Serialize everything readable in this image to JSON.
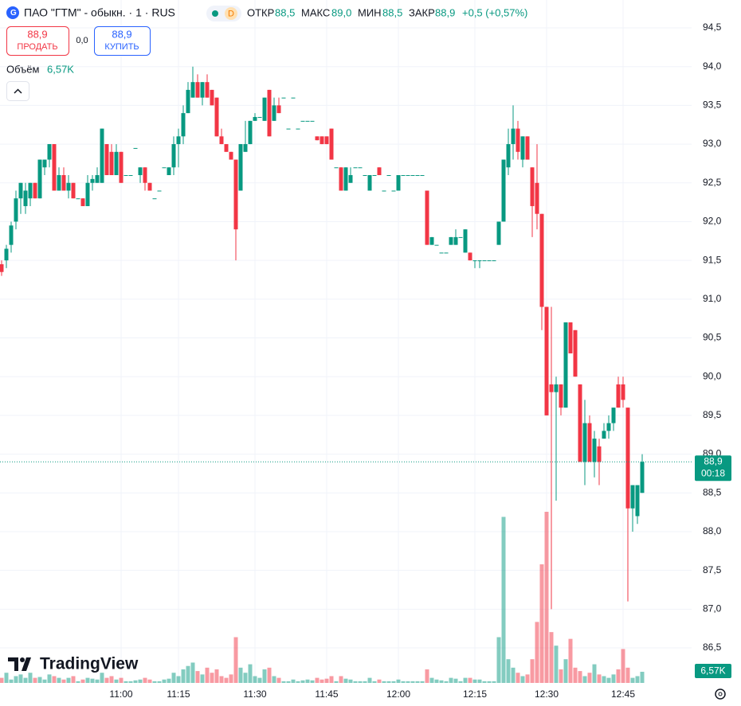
{
  "header": {
    "symbol": "ПАО \"ГТМ\" - обыкн. · 1 · RUS",
    "badge": "D",
    "open_label": "ОТКР",
    "open": "88,5",
    "high_label": "МАКС",
    "high": "89,0",
    "low_label": "МИН",
    "low": "88,5",
    "close_label": "ЗАКР",
    "close": "88,9",
    "change": "+0,5 (+0,57%)"
  },
  "trade": {
    "sell_price": "88,9",
    "sell_label": "ПРОДАТЬ",
    "spread": "0,0",
    "buy_price": "88,9",
    "buy_label": "КУПИТЬ"
  },
  "legend": {
    "volume_title": "Объём",
    "volume_value": "6,57K"
  },
  "brand": "TradingView",
  "chart_data": {
    "type": "candlestick",
    "up_color": "#089981",
    "down_color": "#f23645",
    "grid": true,
    "categories": [
      null,
      null,
      null,
      null,
      null,
      null,
      null,
      null,
      null,
      null,
      null,
      null,
      null,
      null,
      null,
      null,
      null,
      null,
      null,
      null,
      null,
      null,
      null,
      null,
      null,
      "11:00",
      null,
      null,
      null,
      null,
      null,
      null,
      null,
      null,
      null,
      null,
      null,
      "11:15",
      null,
      null,
      null,
      null,
      null,
      null,
      null,
      null,
      null,
      null,
      null,
      null,
      null,
      null,
      null,
      "11:30",
      null,
      null,
      null,
      null,
      null,
      null,
      null,
      null,
      null,
      null,
      null,
      null,
      null,
      null,
      "11:45",
      null,
      null,
      null,
      null,
      null,
      null,
      null,
      null,
      null,
      null,
      null,
      null,
      null,
      null,
      "12:00",
      null,
      null,
      null,
      null,
      null,
      null,
      null,
      null,
      null,
      null,
      null,
      null,
      null,
      null,
      null,
      "12:15",
      null,
      null,
      null,
      null,
      null,
      null,
      null,
      null,
      null,
      null,
      null,
      null,
      null,
      null,
      "12:30",
      null,
      null,
      null,
      null,
      null,
      null,
      null,
      null,
      null,
      null,
      null,
      null,
      null,
      null,
      null,
      "12:45",
      null,
      null,
      null,
      null
    ],
    "open": [
      91.45,
      91.5,
      91.7,
      92.0,
      92.3,
      92.2,
      92.3,
      92.5,
      92.3,
      92.7,
      92.8,
      93.0,
      92.4,
      92.6,
      92.4,
      92.5,
      92.3,
      92.3,
      92.2,
      92.5,
      92.5,
      92.5,
      93.0,
      92.9,
      92.6,
      92.9,
      92.6,
      92.6,
      92.95,
      92.6,
      92.7,
      92.5,
      92.3,
      92.4,
      92.7,
      92.6,
      92.7,
      93.0,
      93.1,
      93.4,
      93.6,
      93.8,
      93.6,
      93.8,
      93.7,
      93.6,
      93.1,
      93.0,
      92.9,
      92.8,
      92.4,
      92.9,
      93.0,
      93.3,
      93.35,
      93.3,
      93.7,
      93.3,
      93.5,
      93.6,
      93.2,
      93.6,
      93.2,
      93.3,
      93.3,
      93.3,
      93.1,
      93.1,
      93.1,
      93.2,
      92.7,
      92.7,
      92.4,
      92.5,
      92.7,
      92.7,
      92.6,
      92.4,
      92.6,
      92.7,
      92.4,
      92.6,
      92.4,
      92.4,
      92.6,
      92.6,
      92.6,
      92.6,
      92.6,
      92.4,
      91.7,
      91.7,
      91.6,
      91.6,
      91.7,
      91.7,
      91.8,
      91.6,
      91.6,
      91.5,
      91.5,
      91.5,
      91.5,
      91.5,
      91.7,
      92.0,
      92.7,
      93.0,
      93.2,
      92.8,
      93.1,
      92.7,
      92.5,
      92.1,
      90.9,
      89.9,
      89.8,
      89.9,
      89.6,
      90.7,
      90.6,
      89.9,
      88.9,
      89.4,
      88.9,
      89.1,
      89.2,
      89.3,
      89.4,
      89.9,
      89.9,
      89.6,
      88.3,
      88.2,
      88.5
    ],
    "high": [
      91.5,
      91.7,
      92.0,
      92.4,
      92.5,
      92.5,
      92.5,
      92.5,
      92.8,
      92.8,
      93.0,
      93.0,
      92.7,
      92.7,
      92.6,
      92.5,
      92.3,
      92.3,
      92.6,
      92.6,
      92.7,
      93.2,
      93.0,
      93.0,
      93.0,
      92.9,
      92.6,
      92.6,
      92.95,
      92.7,
      92.7,
      92.5,
      92.3,
      92.4,
      92.7,
      92.7,
      93.1,
      93.2,
      93.5,
      93.8,
      94.0,
      93.9,
      93.8,
      93.9,
      93.7,
      93.6,
      93.2,
      93.0,
      92.9,
      92.8,
      93.0,
      93.3,
      93.3,
      93.4,
      93.35,
      93.6,
      93.7,
      93.6,
      93.6,
      93.6,
      93.2,
      93.6,
      93.2,
      93.3,
      93.3,
      93.3,
      93.1,
      93.1,
      93.1,
      93.2,
      92.7,
      92.7,
      92.7,
      92.7,
      92.7,
      92.7,
      92.6,
      92.6,
      92.6,
      92.7,
      92.4,
      92.6,
      92.4,
      92.6,
      92.6,
      92.6,
      92.6,
      92.6,
      92.6,
      92.4,
      91.8,
      91.7,
      91.6,
      91.6,
      91.8,
      91.9,
      91.8,
      91.9,
      91.6,
      91.5,
      91.5,
      91.5,
      91.5,
      91.5,
      92.0,
      92.8,
      93.2,
      93.5,
      93.3,
      93.1,
      93.1,
      92.7,
      93.0,
      92.1,
      90.9,
      90.9,
      90.0,
      89.9,
      90.7,
      90.7,
      90.6,
      89.9,
      89.7,
      89.5,
      89.3,
      89.2,
      89.4,
      89.5,
      89.6,
      90.0,
      90.0,
      89.6,
      88.6,
      88.6,
      89.0
    ],
    "low": [
      91.3,
      91.4,
      91.6,
      91.9,
      92.1,
      92.1,
      92.2,
      92.3,
      92.3,
      92.6,
      92.7,
      92.4,
      92.4,
      92.4,
      92.3,
      92.3,
      92.3,
      92.2,
      92.2,
      92.4,
      92.5,
      92.5,
      92.6,
      92.6,
      92.6,
      92.5,
      92.6,
      92.6,
      92.95,
      92.5,
      92.4,
      92.4,
      92.3,
      92.4,
      92.7,
      92.6,
      92.6,
      92.7,
      93.0,
      93.4,
      93.6,
      93.6,
      93.5,
      93.6,
      93.5,
      93.1,
      93.0,
      92.9,
      92.8,
      91.5,
      92.4,
      92.9,
      93.0,
      93.3,
      93.35,
      93.3,
      93.1,
      93.3,
      93.4,
      93.6,
      93.2,
      93.6,
      93.2,
      93.3,
      93.3,
      93.3,
      93.05,
      93.0,
      93.0,
      92.8,
      92.7,
      92.4,
      92.4,
      92.5,
      92.7,
      92.7,
      92.6,
      92.4,
      92.6,
      92.6,
      92.4,
      92.6,
      92.4,
      92.4,
      92.6,
      92.6,
      92.6,
      92.6,
      92.6,
      91.7,
      91.7,
      91.7,
      91.6,
      91.6,
      91.7,
      91.7,
      91.8,
      91.6,
      91.5,
      91.4,
      91.4,
      91.5,
      91.5,
      91.5,
      91.7,
      92.0,
      92.6,
      92.8,
      92.8,
      92.7,
      92.8,
      91.8,
      91.9,
      90.6,
      89.5,
      87.0,
      88.4,
      89.5,
      89.6,
      90.3,
      90.0,
      88.9,
      88.6,
      88.9,
      88.7,
      88.6,
      89.2,
      89.2,
      89.3,
      89.6,
      89.6,
      87.1,
      88.0,
      88.1,
      88.5
    ],
    "close": [
      91.35,
      91.65,
      91.95,
      92.3,
      92.5,
      92.4,
      92.5,
      92.3,
      92.8,
      92.8,
      93.0,
      92.4,
      92.6,
      92.4,
      92.5,
      92.3,
      92.3,
      92.2,
      92.5,
      92.55,
      92.6,
      93.2,
      92.6,
      92.6,
      92.9,
      92.5,
      92.6,
      92.6,
      92.95,
      92.7,
      92.5,
      92.4,
      92.3,
      92.4,
      92.7,
      92.7,
      93.0,
      93.1,
      93.4,
      93.7,
      93.8,
      93.6,
      93.8,
      93.6,
      93.5,
      93.1,
      93.0,
      92.9,
      92.8,
      91.9,
      93.0,
      93.0,
      93.3,
      93.35,
      93.35,
      93.6,
      93.1,
      93.5,
      93.4,
      93.6,
      93.2,
      93.6,
      93.2,
      93.3,
      93.3,
      93.3,
      93.05,
      93.0,
      93.0,
      92.8,
      92.7,
      92.4,
      92.7,
      92.6,
      92.7,
      92.7,
      92.6,
      92.6,
      92.6,
      92.6,
      92.4,
      92.6,
      92.4,
      92.6,
      92.6,
      92.6,
      92.6,
      92.6,
      92.6,
      91.7,
      91.8,
      91.7,
      91.6,
      91.6,
      91.8,
      91.8,
      91.8,
      91.9,
      91.5,
      91.5,
      91.5,
      91.5,
      91.5,
      91.5,
      92.0,
      92.8,
      93.0,
      93.2,
      92.9,
      93.1,
      92.8,
      92.2,
      92.1,
      90.9,
      89.5,
      89.8,
      89.9,
      89.6,
      90.7,
      90.3,
      90.0,
      88.9,
      89.4,
      88.9,
      89.2,
      88.9,
      89.3,
      89.4,
      89.6,
      89.6,
      89.7,
      88.3,
      88.6,
      88.6,
      88.9
    ],
    "volume": [
      3000,
      6000,
      2000,
      4000,
      5000,
      3000,
      6000,
      3000,
      3500,
      2000,
      5000,
      4000,
      3000,
      2000,
      3000,
      4000,
      1000,
      2000,
      3000,
      2500,
      2000,
      6000,
      3000,
      4000,
      2000,
      3000,
      1000,
      1000,
      1500,
      2000,
      3000,
      2000,
      1000,
      1000,
      2000,
      2500,
      6000,
      4000,
      8000,
      10000,
      12000,
      7000,
      5000,
      9000,
      6000,
      8000,
      4000,
      3000,
      5000,
      27000,
      9000,
      6000,
      11000,
      4000,
      3000,
      8000,
      9000,
      4000,
      3000,
      1000,
      1000,
      2000,
      1000,
      1500,
      2000,
      1500,
      3000,
      2000,
      2500,
      4000,
      1000,
      4000,
      2500,
      2000,
      1000,
      1000,
      1000,
      3000,
      1000,
      2000,
      1000,
      1000,
      1000,
      2000,
      1000,
      1000,
      1000,
      1000,
      1000,
      8000,
      3000,
      2000,
      1500,
      1000,
      3000,
      2500,
      1000,
      3000,
      3000,
      2000,
      2000,
      1000,
      1000,
      1000,
      27000,
      98000,
      14000,
      9000,
      6000,
      4000,
      5000,
      14000,
      36000,
      70000,
      101000,
      30000,
      22000,
      8000,
      14000,
      26000,
      9000,
      7000,
      4000,
      6000,
      11000,
      5000,
      4000,
      3000,
      5000,
      8000,
      20000,
      9000,
      3000,
      4000,
      6570
    ],
    "volume_last_label": "6,57K",
    "ylim": [
      86.0,
      94.5
    ],
    "yticks": [
      {
        "value": 94.5,
        "label": "94,5"
      },
      {
        "value": 94.0,
        "label": "94,0"
      },
      {
        "value": 93.5,
        "label": "93,5"
      },
      {
        "value": 93.0,
        "label": "93,0"
      },
      {
        "value": 92.5,
        "label": "92,5"
      },
      {
        "value": 92.0,
        "label": "92,0"
      },
      {
        "value": 91.5,
        "label": "91,5"
      },
      {
        "value": 91.0,
        "label": "91,0"
      },
      {
        "value": 90.5,
        "label": "90,5"
      },
      {
        "value": 90.0,
        "label": "90,0"
      },
      {
        "value": 89.5,
        "label": "89,5"
      },
      {
        "value": 89.0,
        "label": "89,0"
      },
      {
        "value": 88.5,
        "label": "88,5"
      },
      {
        "value": 88.0,
        "label": "88,0"
      },
      {
        "value": 87.5,
        "label": "87,5"
      },
      {
        "value": 87.0,
        "label": "87,0"
      },
      {
        "value": 86.5,
        "label": "86,5"
      }
    ],
    "last_price": {
      "value": 88.9,
      "label": "88,9"
    },
    "countdown": "00:18"
  }
}
